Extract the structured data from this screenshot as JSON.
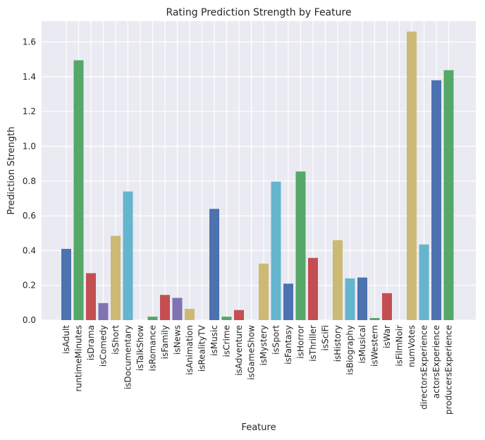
{
  "chart_data": {
    "type": "bar",
    "title": "Rating Prediction Strength by Feature",
    "xlabel": "Feature",
    "ylabel": "Prediction Strength",
    "ylim": [
      0,
      1.72
    ],
    "yticks": [
      "0.0",
      "0.2",
      "0.4",
      "0.6",
      "0.8",
      "1.0",
      "1.2",
      "1.4",
      "1.6"
    ],
    "grid": true,
    "categories": [
      "isAdult",
      "runtimeMinutes",
      "isDrama",
      "isComedy",
      "isShort",
      "isDocumentary",
      "isTalkShow",
      "isRomance",
      "isFamily",
      "isNews",
      "isAnimation",
      "isRealityTV",
      "isMusic",
      "isCrime",
      "isAdventure",
      "isGameShow",
      "isMystery",
      "isSport",
      "isFantasy",
      "isHorror",
      "isThriller",
      "isSciFi",
      "isHistory",
      "isBiography",
      "isMusical",
      "isWestern",
      "isWar",
      "isFilmNoir",
      "numVotes",
      "directorsExperience",
      "actorsExperience",
      "producersExperience"
    ],
    "values": [
      0.41,
      1.495,
      0.27,
      0.098,
      0.485,
      0.74,
      0.0,
      0.02,
      0.145,
      0.128,
      0.065,
      0.0,
      0.64,
      0.02,
      0.058,
      0.0,
      0.325,
      0.797,
      0.21,
      0.855,
      0.358,
      0.0,
      0.46,
      0.24,
      0.245,
      0.012,
      0.155,
      0.0,
      1.66,
      0.435,
      1.38,
      1.438
    ],
    "colors": [
      "#4c72b0",
      "#55a868",
      "#c44e52",
      "#8172b2",
      "#ccb974",
      "#64b5cd"
    ]
  }
}
